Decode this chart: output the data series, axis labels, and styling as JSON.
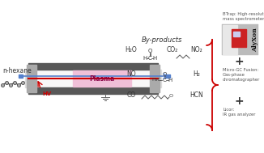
{
  "bg_color": "#ffffff",
  "fig_width": 3.26,
  "fig_height": 1.89,
  "n_hexane_label": "n-hexane",
  "plasma_label": "Plasma",
  "hv_label": "HV",
  "byproducts_label": "By-products",
  "reactor_color": "#585858",
  "plasma_color": "#f0c0d8",
  "red": "#cc0000",
  "blue": "#5580cc",
  "text_color": "#333333",
  "gray_light": "#c8c8c8",
  "instrument_texts": [
    "BTrap: High-resolution\nmass spectrometer",
    "Micro-GC Fusion:\nGas-phase\nchromatographer",
    "Licor:\nIR gas analyzer"
  ],
  "formulas_row1": [
    "H₂O",
    "CO₂",
    "NO₂"
  ],
  "formulas_row2": [
    "NO",
    "H₂"
  ],
  "formulas_row3": [
    "CO",
    "HCN"
  ]
}
